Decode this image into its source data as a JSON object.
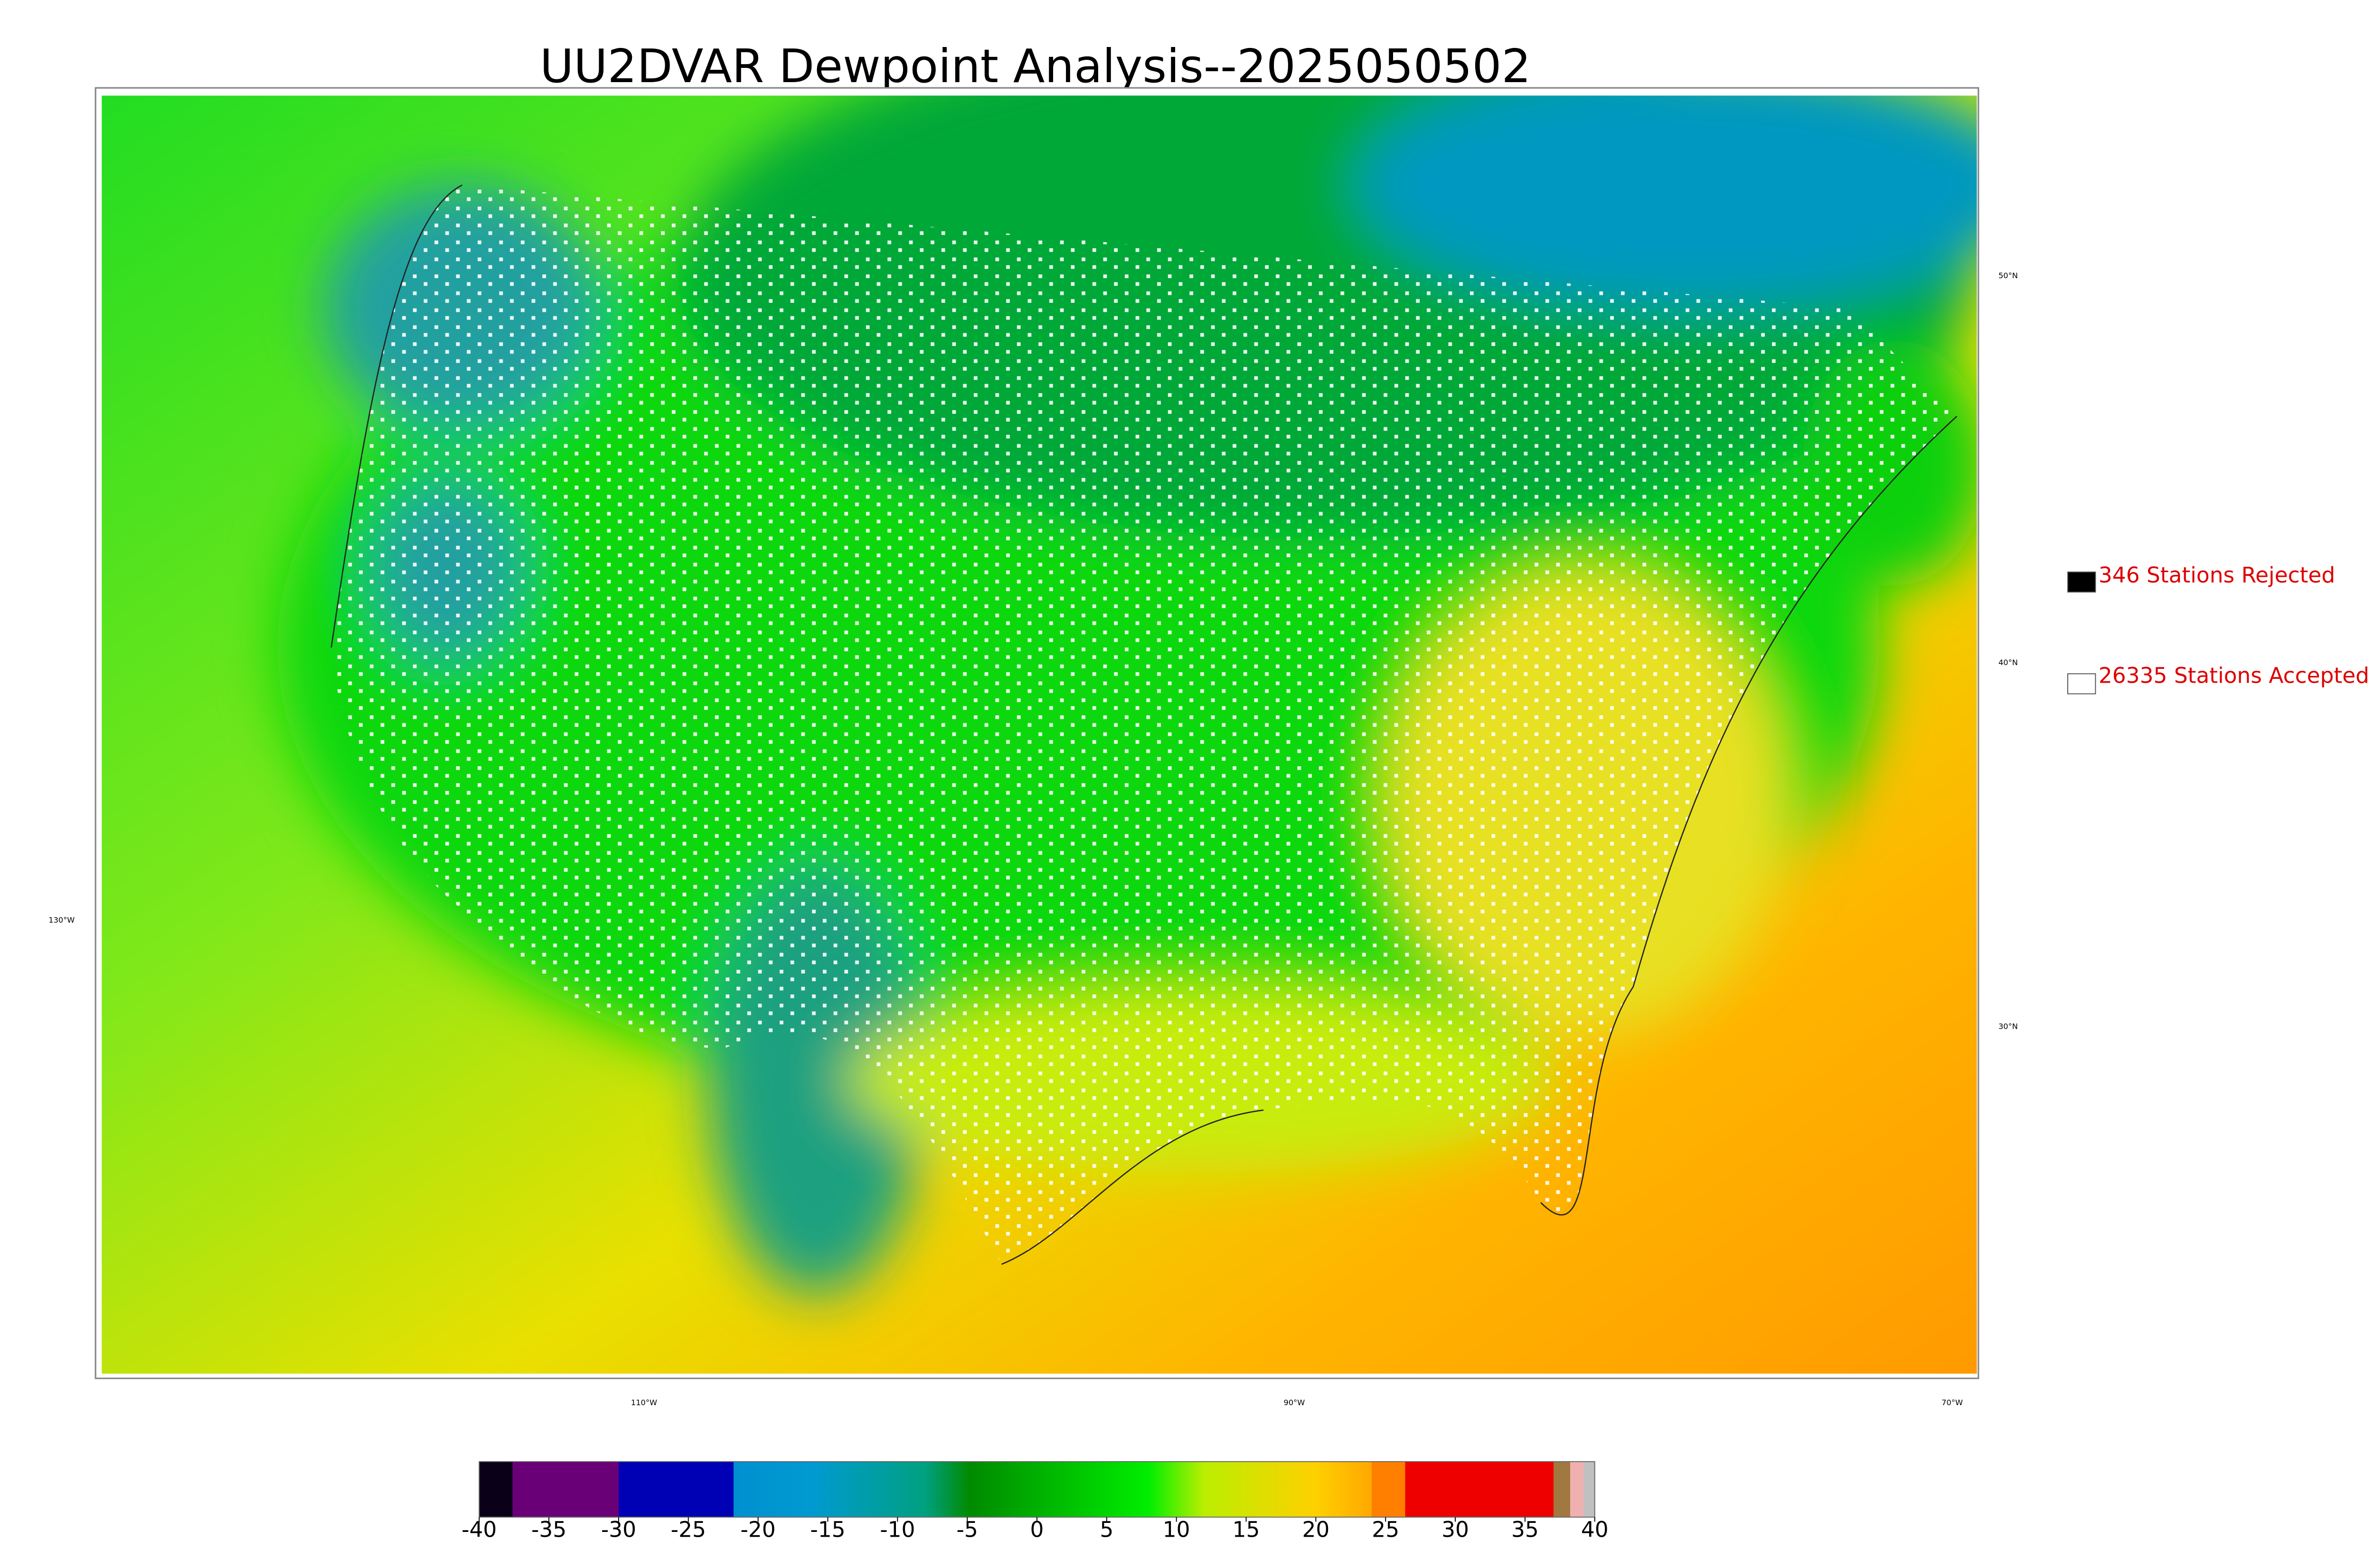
{
  "title": "UU2DVAR Dewpoint Analysis--2025050502",
  "legend": {
    "items": [
      {
        "label": "346 Stations Rejected",
        "color": "#000000"
      },
      {
        "label": "26335 Stations Accepted",
        "color": "#ffffff"
      }
    ]
  },
  "lat_labels": [
    "50°N",
    "40°N",
    "30°N"
  ],
  "lon_labels": [
    "130°W",
    "110°W",
    "90°W",
    "70°W"
  ],
  "colorbar": {
    "lim": [
      -40,
      40
    ],
    "ticks": [
      -40,
      -35,
      -30,
      -25,
      -20,
      -15,
      -10,
      -5,
      0,
      5,
      10,
      15,
      20,
      25,
      30,
      35,
      40
    ]
  }
}
